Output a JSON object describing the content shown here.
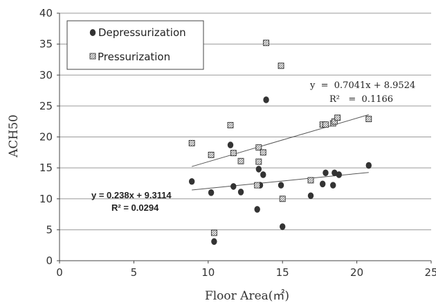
{
  "chart_data": {
    "type": "scatter",
    "xlabel": "Floor Area(㎡)",
    "ylabel": "ACH50",
    "xlim": [
      0,
      25
    ],
    "ylim": [
      0,
      40
    ],
    "xticks": [
      0,
      5,
      10,
      15,
      20,
      25
    ],
    "yticks": [
      0,
      5,
      10,
      15,
      20,
      25,
      30,
      35,
      40
    ],
    "grid": "horizontal",
    "legend_position": "top-left",
    "series": [
      {
        "name": "Depressurization",
        "marker": "filled-circle",
        "color": "#333333",
        "points": [
          [
            8.9,
            12.8
          ],
          [
            10.2,
            11.0
          ],
          [
            10.4,
            3.1
          ],
          [
            11.5,
            18.7
          ],
          [
            11.7,
            12.0
          ],
          [
            12.2,
            11.1
          ],
          [
            13.3,
            8.3
          ],
          [
            13.4,
            14.8
          ],
          [
            13.5,
            12.2
          ],
          [
            13.7,
            13.9
          ],
          [
            13.9,
            26.0
          ],
          [
            14.9,
            12.2
          ],
          [
            15.0,
            5.5
          ],
          [
            16.9,
            10.5
          ],
          [
            17.7,
            12.4
          ],
          [
            17.9,
            14.2
          ],
          [
            18.4,
            12.2
          ],
          [
            18.5,
            14.2
          ],
          [
            18.8,
            13.9
          ],
          [
            20.8,
            15.4
          ]
        ],
        "trendline": {
          "slope": 0.238,
          "intercept": 9.3114,
          "x_range": [
            8.9,
            20.8
          ],
          "equation": "y = 0.238x + 9.3114",
          "r_squared": "R² = 0.0294"
        }
      },
      {
        "name": "Pressurization",
        "marker": "hatched-square",
        "color": "#333333",
        "points": [
          [
            8.9,
            19.0
          ],
          [
            10.2,
            17.1
          ],
          [
            10.4,
            4.5
          ],
          [
            11.5,
            21.9
          ],
          [
            11.7,
            17.4
          ],
          [
            12.2,
            16.1
          ],
          [
            13.3,
            12.2
          ],
          [
            13.4,
            18.3
          ],
          [
            13.4,
            16.0
          ],
          [
            13.7,
            17.5
          ],
          [
            13.9,
            35.2
          ],
          [
            14.9,
            31.5
          ],
          [
            15.0,
            10.0
          ],
          [
            16.9,
            13.0
          ],
          [
            17.7,
            22.0
          ],
          [
            17.9,
            22.0
          ],
          [
            18.4,
            22.2
          ],
          [
            18.5,
            22.5
          ],
          [
            18.7,
            23.1
          ],
          [
            20.8,
            22.9
          ]
        ],
        "trendline": {
          "slope": 0.7041,
          "intercept": 8.9524,
          "x_range": [
            8.9,
            20.8
          ],
          "equation": "y  =  0.7041x + 8.9524",
          "r_squared": "R²   =  0.1166"
        }
      }
    ]
  }
}
